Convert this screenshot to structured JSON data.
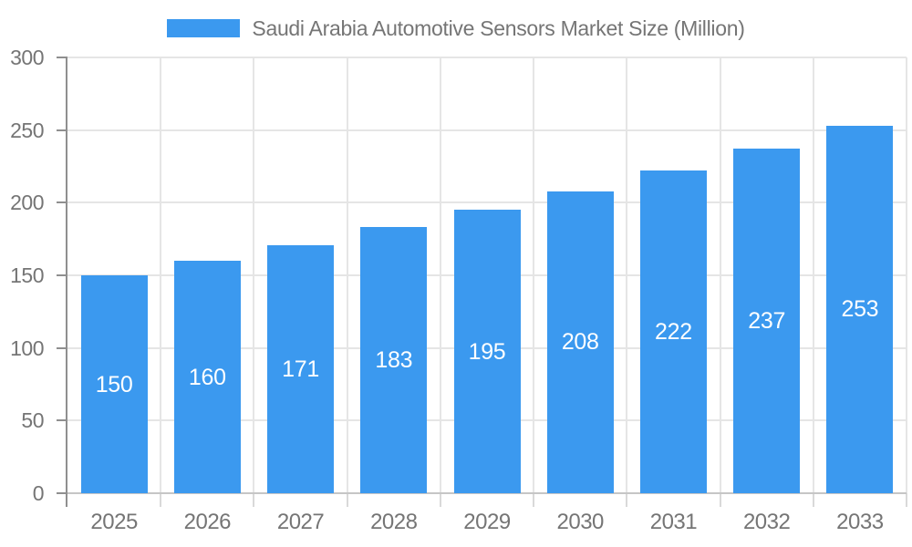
{
  "legend": {
    "label": "Saudi Arabia Automotive Sensors Market Size (Million)"
  },
  "colors": {
    "bar": "#3B99EF",
    "value_label": "#FFFFFF",
    "title_text": "#757575",
    "axis_label": "#757575",
    "grid": "#E5E5E5",
    "y_axis_line": "#8F8F8F",
    "x_axis_line": "#C6C6C6",
    "y_tick": "#8F8F8F",
    "x_tick": "#D9D9D9",
    "background": "#FFFFFF"
  },
  "chart_data": {
    "type": "bar",
    "title": "Saudi Arabia Automotive Sensors Market Size (Million)",
    "xlabel": "",
    "ylabel": "",
    "categories": [
      "2025",
      "2026",
      "2027",
      "2028",
      "2029",
      "2030",
      "2031",
      "2032",
      "2033"
    ],
    "values": [
      150,
      160,
      171,
      183,
      195,
      208,
      222,
      237,
      253
    ],
    "ylim": [
      0,
      300
    ],
    "yticks": [
      0,
      50,
      100,
      150,
      200,
      250,
      300
    ],
    "grid": true,
    "legend_position": "top-center",
    "value_label_position": "inside-center"
  }
}
